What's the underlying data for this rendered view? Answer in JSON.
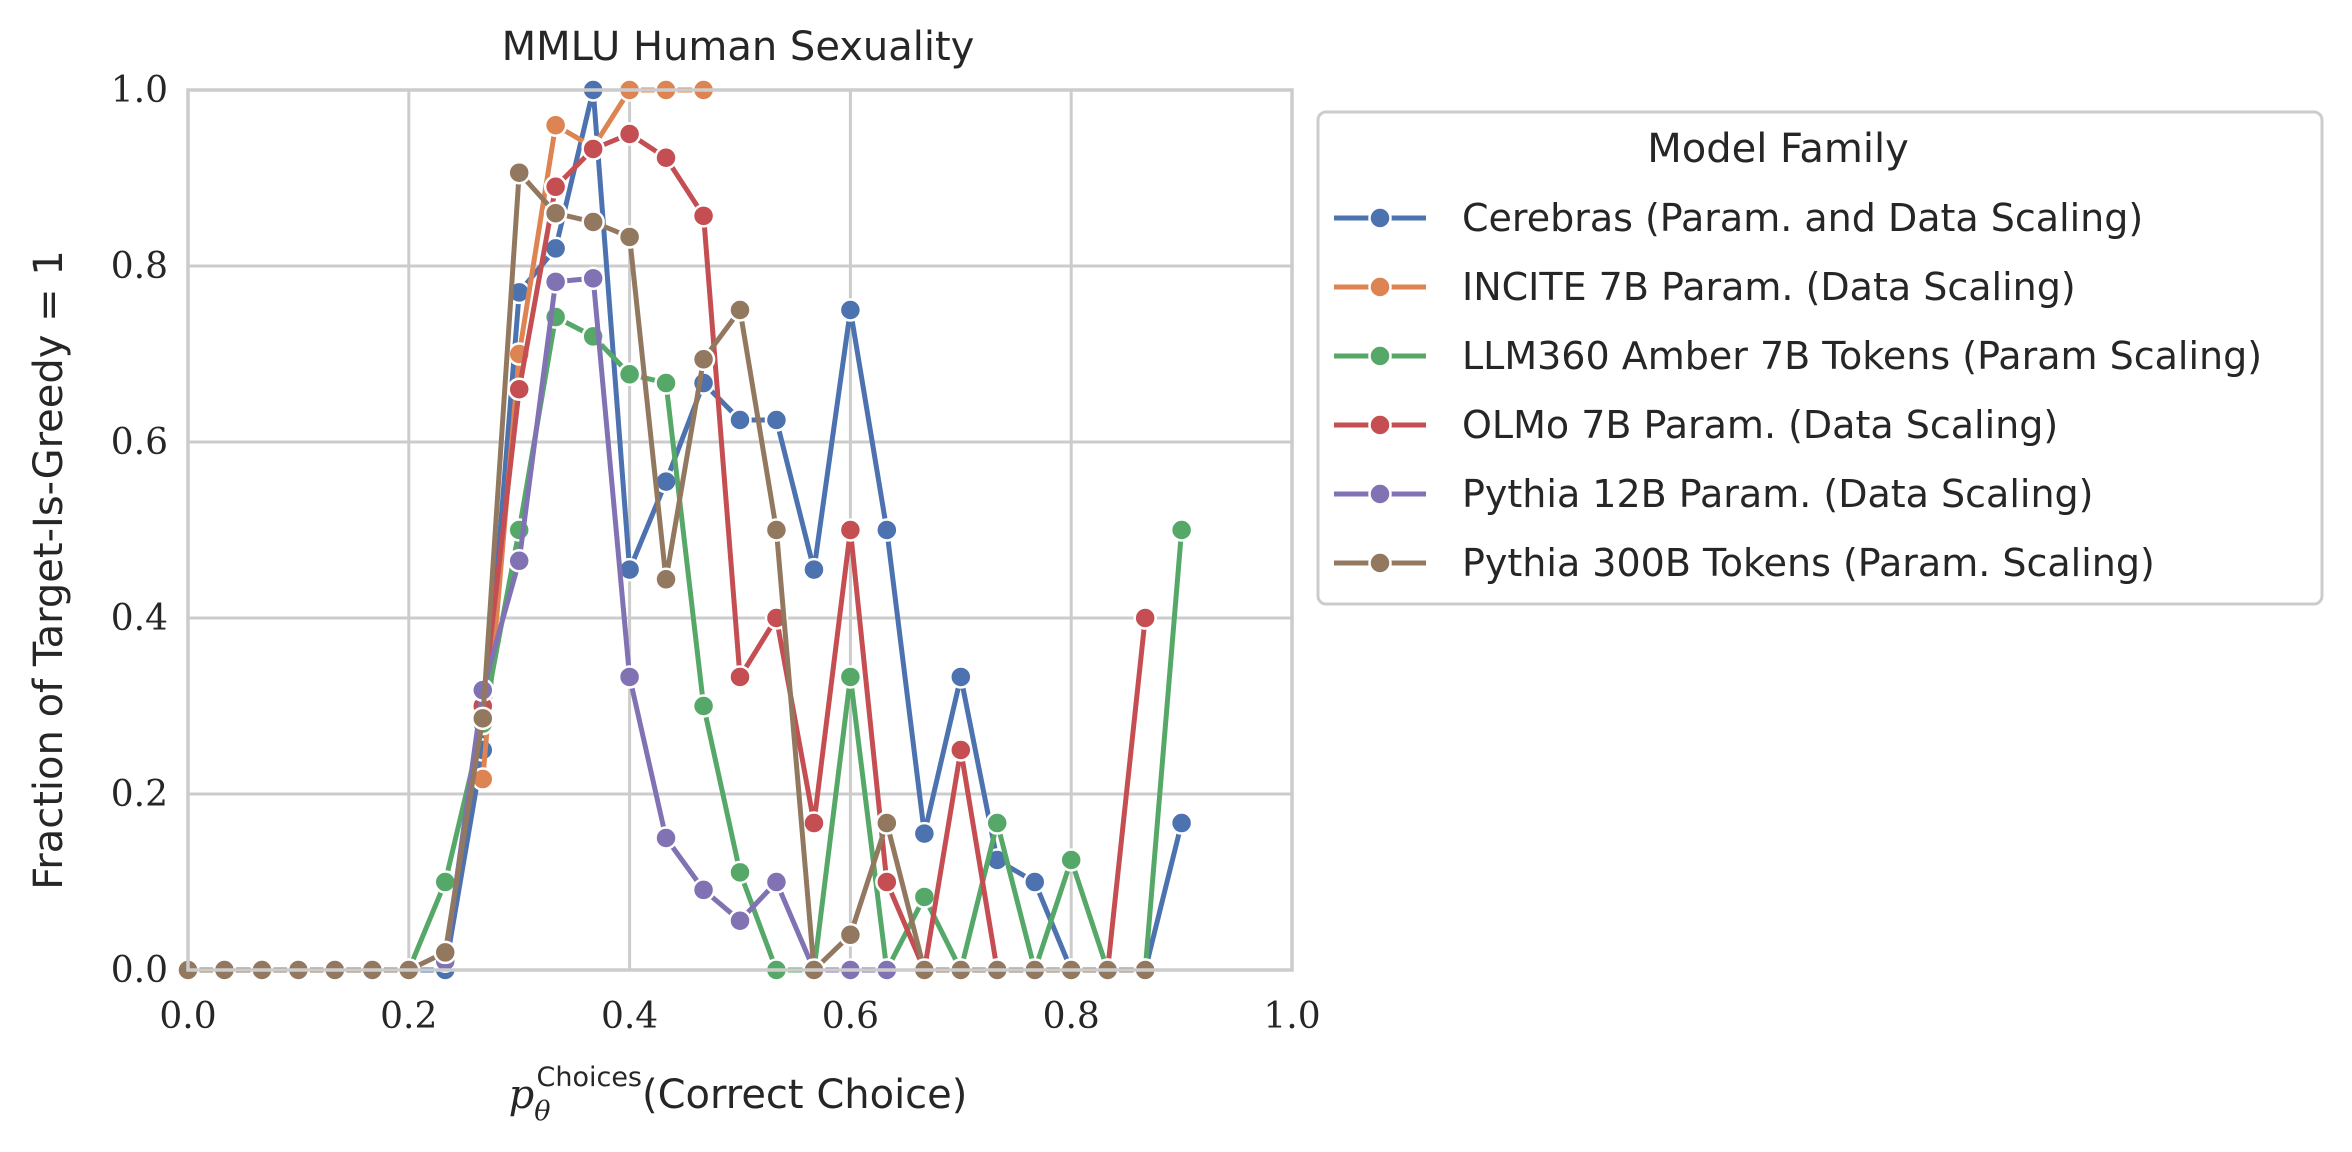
{
  "chart_data": {
    "type": "line",
    "title": "MMLU Human Sexuality",
    "xlabel_prefix": "p",
    "xlabel_sub": "θ",
    "xlabel_sup": "Choices",
    "xlabel_main": "(Correct Choice)",
    "ylabel": "Fraction of Target-Is-Greedy = 1",
    "xlim": [
      0.0,
      1.0
    ],
    "ylim": [
      0.0,
      1.0
    ],
    "xticks": [
      "0.0",
      "0.2",
      "0.4",
      "0.6",
      "0.8",
      "1.0"
    ],
    "yticks": [
      "0.0",
      "0.2",
      "0.4",
      "0.6",
      "0.8",
      "1.0"
    ],
    "grid": true,
    "legend": {
      "title": "Model Family",
      "placement": "outside-upper-right"
    },
    "series": [
      {
        "name": "Cerebras (Param. and Data Scaling)",
        "color": "#4c72b0",
        "points": [
          [
            0.0,
            0.0
          ],
          [
            0.033,
            0.0
          ],
          [
            0.067,
            0.0
          ],
          [
            0.1,
            0.0
          ],
          [
            0.133,
            0.0
          ],
          [
            0.167,
            0.0
          ],
          [
            0.2,
            0.0
          ],
          [
            0.233,
            0.0
          ],
          [
            0.267,
            0.25
          ],
          [
            0.3,
            0.77
          ],
          [
            0.333,
            0.82
          ],
          [
            0.367,
            1.0
          ],
          [
            0.4,
            0.455
          ],
          [
            0.433,
            0.555
          ],
          [
            0.467,
            0.667
          ],
          [
            0.5,
            0.625
          ],
          [
            0.533,
            0.625
          ],
          [
            0.567,
            0.455
          ],
          [
            0.6,
            0.75
          ],
          [
            0.633,
            0.5
          ],
          [
            0.667,
            0.155
          ],
          [
            0.7,
            0.333
          ],
          [
            0.733,
            0.125
          ],
          [
            0.767,
            0.1
          ],
          [
            0.8,
            0.0
          ],
          [
            0.833,
            0.0
          ],
          [
            0.867,
            0.0
          ],
          [
            0.9,
            0.167
          ]
        ]
      },
      {
        "name": "INCITE 7B Param. (Data Scaling)",
        "color": "#dd8452",
        "points": [
          [
            0.267,
            0.217
          ],
          [
            0.3,
            0.7
          ],
          [
            0.333,
            0.96
          ],
          [
            0.367,
            0.935
          ],
          [
            0.4,
            1.0
          ],
          [
            0.433,
            1.0
          ],
          [
            0.467,
            1.0
          ]
        ]
      },
      {
        "name": "LLM360 Amber 7B Tokens (Param Scaling)",
        "color": "#55a868",
        "points": [
          [
            0.2,
            0.0
          ],
          [
            0.233,
            0.1
          ],
          [
            0.267,
            0.28
          ],
          [
            0.3,
            0.5
          ],
          [
            0.333,
            0.742
          ],
          [
            0.367,
            0.72
          ],
          [
            0.4,
            0.677
          ],
          [
            0.433,
            0.667
          ],
          [
            0.467,
            0.3
          ],
          [
            0.5,
            0.111
          ],
          [
            0.533,
            0.0
          ],
          [
            0.567,
            0.0
          ],
          [
            0.6,
            0.333
          ],
          [
            0.633,
            0.0
          ],
          [
            0.667,
            0.083
          ],
          [
            0.7,
            0.0
          ],
          [
            0.733,
            0.167
          ],
          [
            0.767,
            0.0
          ],
          [
            0.8,
            0.125
          ],
          [
            0.833,
            0.0
          ],
          [
            0.867,
            0.0
          ],
          [
            0.9,
            0.5
          ]
        ]
      },
      {
        "name": "OLMo 7B Param. (Data Scaling)",
        "color": "#c44e52",
        "points": [
          [
            0.267,
            0.3
          ],
          [
            0.3,
            0.66
          ],
          [
            0.333,
            0.89
          ],
          [
            0.367,
            0.933
          ],
          [
            0.4,
            0.95
          ],
          [
            0.433,
            0.923
          ],
          [
            0.467,
            0.857
          ],
          [
            0.5,
            0.333
          ],
          [
            0.533,
            0.4
          ],
          [
            0.567,
            0.167
          ],
          [
            0.6,
            0.5
          ],
          [
            0.633,
            0.1
          ],
          [
            0.667,
            0.0
          ],
          [
            0.7,
            0.25
          ],
          [
            0.733,
            0.0
          ],
          [
            0.767,
            0.0
          ],
          [
            0.8,
            0.0
          ],
          [
            0.833,
            0.0
          ],
          [
            0.867,
            0.4
          ]
        ]
      },
      {
        "name": "Pythia 12B Param. (Data Scaling)",
        "color": "#8172b3",
        "points": [
          [
            0.233,
            0.01
          ],
          [
            0.267,
            0.318
          ],
          [
            0.3,
            0.465
          ],
          [
            0.333,
            0.782
          ],
          [
            0.367,
            0.786
          ],
          [
            0.4,
            0.333
          ],
          [
            0.433,
            0.15
          ],
          [
            0.467,
            0.091
          ],
          [
            0.5,
            0.056
          ],
          [
            0.533,
            0.1
          ],
          [
            0.567,
            0.0
          ],
          [
            0.6,
            0.0
          ],
          [
            0.633,
            0.0
          ]
        ]
      },
      {
        "name": "Pythia 300B Tokens (Param. Scaling)",
        "color": "#937860",
        "points": [
          [
            0.0,
            0.0
          ],
          [
            0.033,
            0.0
          ],
          [
            0.067,
            0.0
          ],
          [
            0.1,
            0.0
          ],
          [
            0.133,
            0.0
          ],
          [
            0.167,
            0.0
          ],
          [
            0.2,
            0.0
          ],
          [
            0.233,
            0.02
          ],
          [
            0.267,
            0.286
          ],
          [
            0.3,
            0.906
          ],
          [
            0.333,
            0.86
          ],
          [
            0.367,
            0.85
          ],
          [
            0.4,
            0.833
          ],
          [
            0.433,
            0.444
          ],
          [
            0.467,
            0.694
          ],
          [
            0.5,
            0.75
          ],
          [
            0.533,
            0.5
          ],
          [
            0.567,
            0.0
          ],
          [
            0.6,
            0.04
          ],
          [
            0.633,
            0.167
          ],
          [
            0.667,
            0.0
          ],
          [
            0.7,
            0.0
          ],
          [
            0.733,
            0.0
          ],
          [
            0.767,
            0.0
          ],
          [
            0.8,
            0.0
          ],
          [
            0.833,
            0.0
          ],
          [
            0.867,
            0.0
          ]
        ]
      }
    ]
  }
}
